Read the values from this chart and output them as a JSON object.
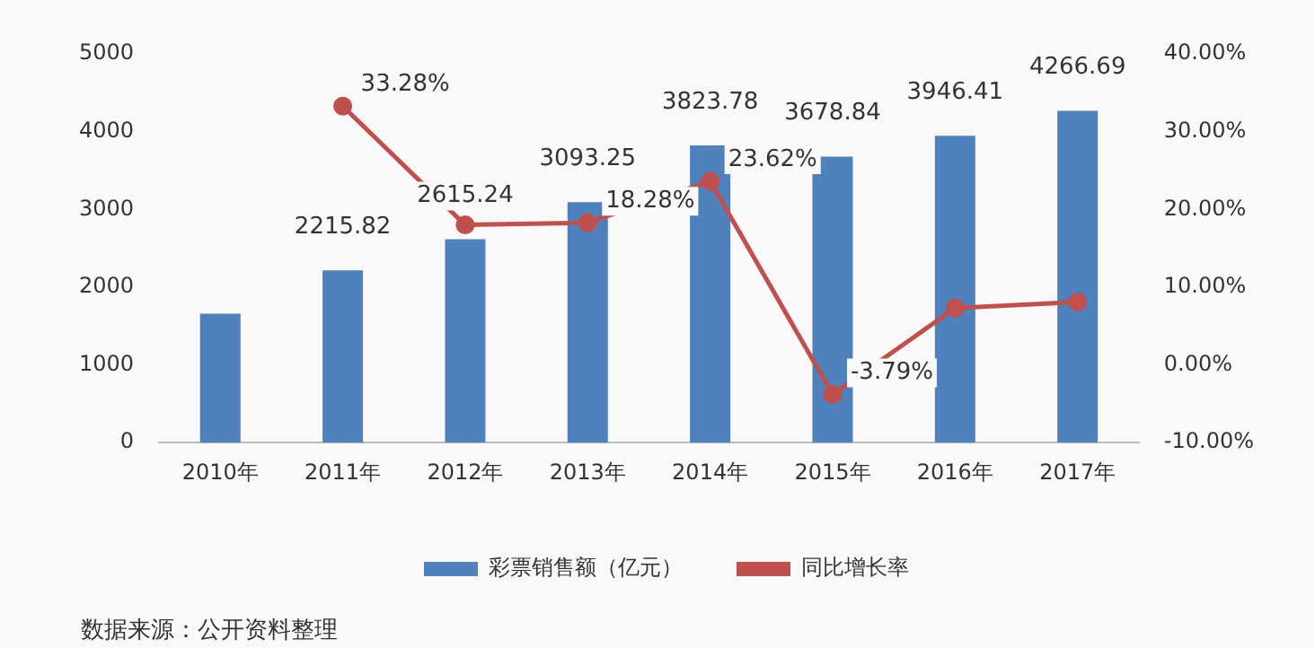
{
  "chart_data": {
    "type": "bar",
    "categories": [
      "2010年",
      "2011年",
      "2012年",
      "2013年",
      "2014年",
      "2015年",
      "2016年",
      "2017年"
    ],
    "series": [
      {
        "name": "彩票销售额（亿元）",
        "color": "#4f81bd",
        "values": [
          1660,
          2215.82,
          2615.24,
          3093.25,
          3823.78,
          3678.84,
          3946.41,
          4266.69
        ],
        "value_labels": [
          null,
          "2215.82",
          "2615.24",
          "3093.25",
          "3823.78",
          "3678.84",
          "3946.41",
          "4266.69"
        ]
      },
      {
        "name": "同比增长率",
        "type": "line",
        "axis": "y2",
        "color": "#c0504d",
        "values": [
          null,
          33.28,
          18,
          18.28,
          23.62,
          -3.79,
          7.3,
          8.1
        ],
        "value_labels": [
          null,
          "33.28%",
          null,
          "18.28%",
          "23.62%",
          "-3.79%",
          null,
          null
        ]
      }
    ],
    "ylim": [
      0,
      5000
    ],
    "yticks": [
      0,
      1000,
      2000,
      3000,
      4000,
      5000
    ],
    "y2lim": [
      -10,
      40
    ],
    "y2ticks": [
      {
        "value": -10,
        "label": "-10.00%"
      },
      {
        "value": 0,
        "label": "0.00%"
      },
      {
        "value": 10,
        "label": "10.00%"
      },
      {
        "value": 20,
        "label": "20.00%"
      },
      {
        "value": 30,
        "label": "30.00%"
      },
      {
        "value": 40,
        "label": "40.00%"
      }
    ],
    "grid": false,
    "legend": "bottom",
    "marker": "circle",
    "line_style": "solid",
    "annotations": [
      "数据来源：公开资料整理"
    ]
  }
}
